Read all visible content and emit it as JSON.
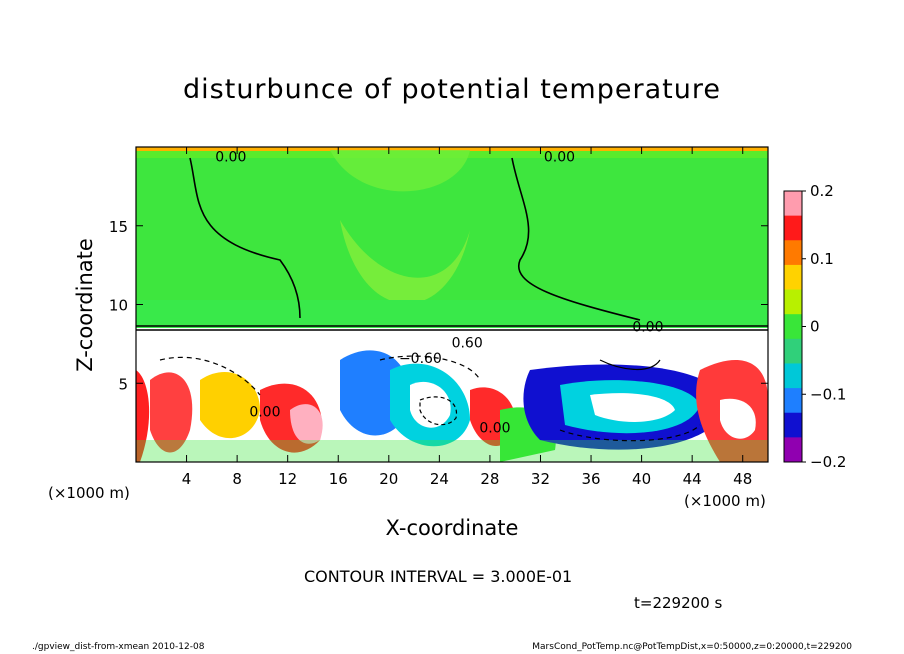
{
  "chart_data": {
    "type": "heatmap",
    "title": "disturbunce of potential temperature",
    "xlabel": "X-coordinate",
    "ylabel": "Z-coordinate",
    "x_unit": "(×1000 m)",
    "y_unit": "(×1000 m)",
    "xlim": [
      0,
      50
    ],
    "ylim": [
      0,
      20
    ],
    "x_ticks": [
      4,
      8,
      12,
      16,
      20,
      24,
      28,
      32,
      36,
      40,
      44,
      48
    ],
    "y_ticks": [
      5,
      10,
      15
    ],
    "colorbar": {
      "range": [
        -0.2,
        0.2
      ],
      "tick_values": [
        0.2,
        0.1,
        0,
        -0.1,
        -0.2
      ],
      "tick_labels": [
        "0.2",
        "0.1",
        "0",
        "−0.1",
        "−0.2"
      ],
      "colors": [
        "#ff9cae",
        "#ff1a1a",
        "#ff7a00",
        "#ffd200",
        "#b8f000",
        "#39e639",
        "#30d07a",
        "#00c8d8",
        "#1e7fff",
        "#1010d0",
        "#9000b0"
      ]
    },
    "contour_labels": [
      {
        "text": "0.00",
        "x": 7.5,
        "y": 19.4
      },
      {
        "text": "0.00",
        "x": 33.5,
        "y": 19.4
      },
      {
        "text": "0.00",
        "x": 40.5,
        "y": 8.6
      },
      {
        "text": "−0.60",
        "x": 22.5,
        "y": 6.6
      },
      {
        "text": "0.60",
        "x": 26.2,
        "y": 7.6
      },
      {
        "text": "0.00",
        "x": 10.2,
        "y": 3.2
      },
      {
        "text": "0.00",
        "x": 28.4,
        "y": 2.2
      }
    ],
    "contour_interval_text": "CONTOUR INTERVAL = 3.000E-01",
    "time_text": "t=229200 s"
  },
  "footer": {
    "left": "./gpview_dist-from-xmean  2010-12-08",
    "right": "MarsCond_PotTemp.nc@PotTempDist,x=0:50000,z=0:20000,t=229200"
  },
  "colors": {
    "upper_field": "#3ee63e",
    "frame": "#000000"
  }
}
